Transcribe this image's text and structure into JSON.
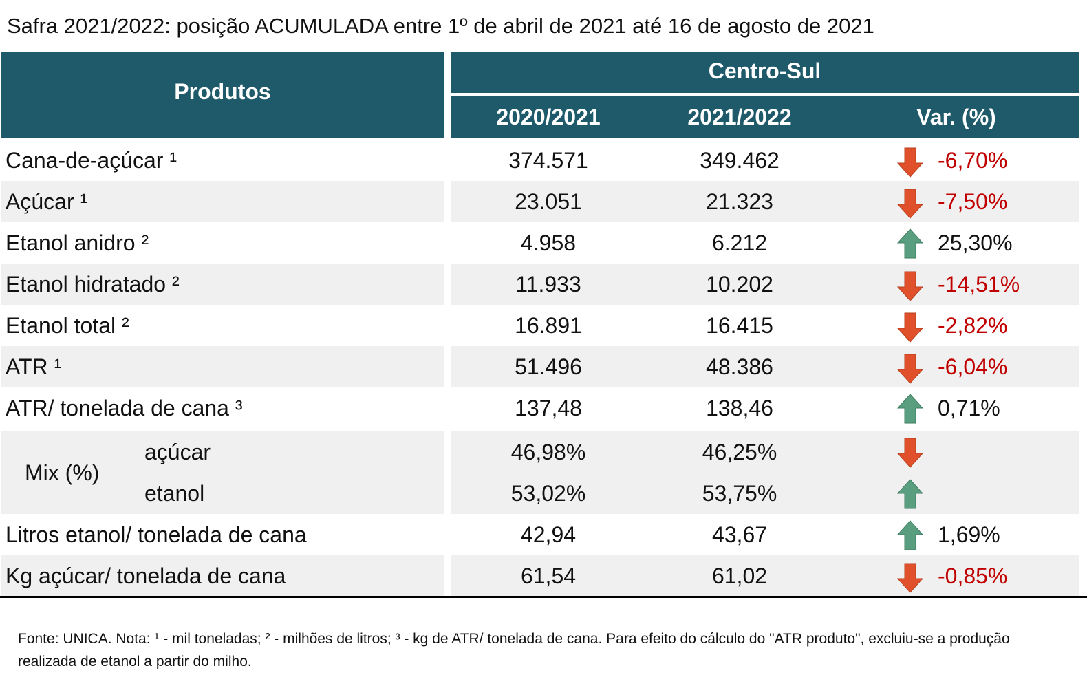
{
  "title": "Safra 2021/2022: posição ACUMULADA entre 1º de abril de 2021 até 16 de agosto de 2021",
  "table": {
    "header": {
      "products": "Produtos",
      "region": "Centro-Sul",
      "columns": [
        "2020/2021",
        "2021/2022",
        "Var. (%)"
      ]
    },
    "rows": [
      {
        "product": "Cana-de-açúcar ¹",
        "values": [
          "374.571",
          "349.462",
          "-6,70%"
        ]
      },
      {
        "product": "Açúcar ¹",
        "values": [
          "23.051",
          "21.323",
          "-7,50%"
        ]
      },
      {
        "product": "Etanol anidro ²",
        "values": [
          "4.958",
          "6.212",
          "25,30%"
        ]
      },
      {
        "product": "Etanol hidratado ²",
        "values": [
          "11.933",
          "10.202",
          "-14,51%"
        ]
      },
      {
        "product": "Etanol total ²",
        "values": [
          "16.891",
          "16.415",
          "-2,82%"
        ]
      },
      {
        "product": "ATR ¹",
        "values": [
          "51.496",
          "48.386",
          "-6,04%"
        ]
      },
      {
        "product": "ATR/ tonelada de cana ³",
        "values": [
          "137,48",
          "138,46",
          "0,71%"
        ]
      },
      {
        "product": "Mix (%)",
        "sub": [
          {
            "label": "açúcar",
            "values": [
              "46,98%",
              "46,25%"
            ]
          },
          {
            "label": "etanol",
            "values": [
              "53,02%",
              "53,75%"
            ]
          }
        ]
      },
      {
        "product": "Litros etanol/ tonelada de cana",
        "values": [
          "42,94",
          "43,67",
          "1,69%"
        ]
      },
      {
        "product": "Kg açúcar/ tonelada de cana",
        "values": [
          "61,54",
          "61,02",
          "-0,85%"
        ]
      }
    ]
  },
  "footnote": "Fonte: UNICA. Nota: ¹ - mil toneladas; ² - milhões de litros; ³ - kg de ATR/ tonelada de cana. Para efeito do cálculo do \"ATR produto\", excluiu-se a produção realizada de etanol a partir do milho."
}
